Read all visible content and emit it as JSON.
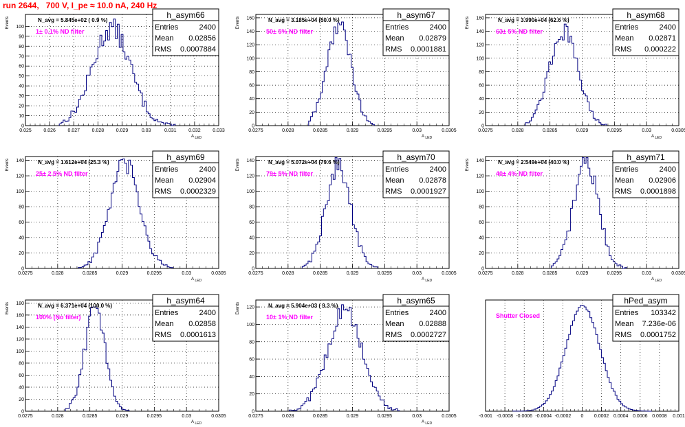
{
  "header": {
    "title": "run 2644,   700 V, I_pe ≈ 10.0 nA, 240 Hz"
  },
  "chart_data": [
    {
      "type": "histogram",
      "stat_title": "h_asym66",
      "navg": "N_avg = 5.845e+02 ( 0.9 %)",
      "annotation": "1± 0.1% ND filter",
      "ylabel": "Events",
      "xlabel": "A_LED",
      "xlim": [
        0.025,
        0.033
      ],
      "ylim": [
        0,
        112
      ],
      "xticks": [
        0.025,
        0.026,
        0.027,
        0.028,
        0.029,
        0.03,
        0.031,
        0.032,
        0.033
      ],
      "xtick_labels": [
        "0.025",
        "0.026",
        "0.027",
        "0.028",
        "0.029",
        "0.03",
        "0.031",
        "0.032",
        "0.033"
      ],
      "yticks": [
        0,
        10,
        20,
        30,
        40,
        50,
        60,
        70,
        80,
        90,
        100
      ],
      "ytick_labels": [
        "0",
        "10",
        "20",
        "30",
        "40",
        "50",
        "60",
        "70",
        "80",
        "90",
        "100"
      ],
      "stats": [
        {
          "label": "Entries",
          "value": "2400"
        },
        {
          "label": "Mean",
          "value": "0.02856"
        },
        {
          "label": "RMS",
          "value": "0.0007884"
        }
      ],
      "hist": {
        "mean": 0.02856,
        "sigma": 0.00079,
        "peak": 98,
        "bin_width": 8e-05,
        "range": [
          0.0264,
          0.0312
        ]
      }
    },
    {
      "type": "histogram",
      "stat_title": "h_asym67",
      "navg": "N_avg = 3.185e+04 (50.0 %)",
      "annotation": "50± 5% ND filter",
      "ylabel": "Events",
      "xlabel": "A_LED",
      "xlim": [
        0.0275,
        0.0305
      ],
      "ylim": [
        0,
        165
      ],
      "xticks": [
        0.0275,
        0.028,
        0.0285,
        0.029,
        0.0295,
        0.03,
        0.0305
      ],
      "xtick_labels": [
        "0.0275",
        "0.028",
        "0.0285",
        "0.029",
        "0.0295",
        "0.03",
        "0.0305"
      ],
      "yticks": [
        0,
        20,
        40,
        60,
        80,
        100,
        120,
        140,
        160
      ],
      "ytick_labels": [
        "0",
        "20",
        "40",
        "60",
        "80",
        "100",
        "120",
        "140",
        "160"
      ],
      "stats": [
        {
          "label": "Entries",
          "value": "2400"
        },
        {
          "label": "Mean",
          "value": "0.02879"
        },
        {
          "label": "RMS",
          "value": "0.0001881"
        }
      ],
      "hist": {
        "mean": 0.02879,
        "sigma": 0.000188,
        "peak": 150,
        "bin_width": 3e-05,
        "range": [
          0.02832,
          0.02932
        ]
      }
    },
    {
      "type": "histogram",
      "stat_title": "h_asym68",
      "navg": "N_avg = 3.990e+04 (62.6 %)",
      "annotation": "63± 5% ND filter",
      "ylabel": "Events",
      "xlabel": "A_LED",
      "xlim": [
        0.0275,
        0.0305
      ],
      "ylim": [
        0,
        165
      ],
      "xticks": [
        0.0275,
        0.028,
        0.0285,
        0.029,
        0.0295,
        0.03,
        0.0305
      ],
      "xtick_labels": [
        "0.0275",
        "0.028",
        "0.0285",
        "0.029",
        "0.0295",
        "0.03",
        "0.0305"
      ],
      "yticks": [
        0,
        20,
        40,
        60,
        80,
        100,
        120,
        140,
        160
      ],
      "ytick_labels": [
        "0",
        "20",
        "40",
        "60",
        "80",
        "100",
        "120",
        "140",
        "160"
      ],
      "stats": [
        {
          "label": "Entries",
          "value": "2400"
        },
        {
          "label": "Mean",
          "value": "0.02871"
        },
        {
          "label": "RMS",
          "value": "0.000222"
        }
      ],
      "hist": {
        "mean": 0.02871,
        "sigma": 0.000222,
        "peak": 140,
        "bin_width": 3e-05,
        "range": [
          0.02812,
          0.02935
        ]
      }
    },
    {
      "type": "histogram",
      "stat_title": "h_asym69",
      "navg": "N_avg = 1.612e+04 (25.3 %)",
      "annotation": "25± 2.5% ND filter",
      "ylabel": "Events",
      "xlabel": "A_LED",
      "xlim": [
        0.0275,
        0.0305
      ],
      "ylim": [
        0,
        145
      ],
      "xticks": [
        0.0275,
        0.028,
        0.0285,
        0.029,
        0.0295,
        0.03,
        0.0305
      ],
      "xtick_labels": [
        "0.0275",
        "0.028",
        "0.0285",
        "0.029",
        "0.0295",
        "0.03",
        "0.0305"
      ],
      "yticks": [
        0,
        20,
        40,
        60,
        80,
        100,
        120,
        140
      ],
      "ytick_labels": [
        "0",
        "20",
        "40",
        "60",
        "80",
        "100",
        "120",
        "140"
      ],
      "stats": [
        {
          "label": "Entries",
          "value": "2400"
        },
        {
          "label": "Mean",
          "value": "0.02904"
        },
        {
          "label": "RMS",
          "value": "0.0002329"
        }
      ],
      "hist": {
        "mean": 0.02904,
        "sigma": 0.000233,
        "peak": 135,
        "bin_width": 3e-05,
        "range": [
          0.02832,
          0.02976
        ]
      }
    },
    {
      "type": "histogram",
      "stat_title": "h_asym70",
      "navg": "N_avg = 5.072e+04 (79.6 %)",
      "annotation": "79± 5% ND filter",
      "ylabel": "Events",
      "xlabel": "A_LED",
      "xlim": [
        0.0275,
        0.0305
      ],
      "ylim": [
        0,
        145
      ],
      "xticks": [
        0.0275,
        0.028,
        0.0285,
        0.029,
        0.0295,
        0.03,
        0.0305
      ],
      "xtick_labels": [
        "0.0275",
        "0.028",
        "0.0285",
        "0.029",
        "0.0295",
        "0.03",
        "0.0305"
      ],
      "yticks": [
        0,
        20,
        40,
        60,
        80,
        100,
        120,
        140
      ],
      "ytick_labels": [
        "0",
        "20",
        "40",
        "60",
        "80",
        "100",
        "120",
        "140"
      ],
      "stats": [
        {
          "label": "Entries",
          "value": "2400"
        },
        {
          "label": "Mean",
          "value": "0.02878"
        },
        {
          "label": "RMS",
          "value": "0.0001927"
        }
      ],
      "hist": {
        "mean": 0.02878,
        "sigma": 0.000193,
        "peak": 135,
        "bin_width": 3e-05,
        "range": [
          0.02822,
          0.02938
        ]
      }
    },
    {
      "type": "histogram",
      "stat_title": "h_asym71",
      "navg": "N_avg = 2.549e+04 (40.0 %)",
      "annotation": "40± 4% ND filter",
      "ylabel": "Events",
      "xlabel": "A_LED",
      "xlim": [
        0.0275,
        0.0305
      ],
      "ylim": [
        0,
        145
      ],
      "xticks": [
        0.0275,
        0.028,
        0.0285,
        0.029,
        0.0295,
        0.03,
        0.0305
      ],
      "xtick_labels": [
        "0.0275",
        "0.028",
        "0.0285",
        "0.029",
        "0.0295",
        "0.03",
        "0.0305"
      ],
      "yticks": [
        0,
        20,
        40,
        60,
        80,
        100,
        120,
        140
      ],
      "ytick_labels": [
        "0",
        "20",
        "40",
        "60",
        "80",
        "100",
        "120",
        "140"
      ],
      "stats": [
        {
          "label": "Entries",
          "value": "2400"
        },
        {
          "label": "Mean",
          "value": "0.02906"
        },
        {
          "label": "RMS",
          "value": "0.0001898"
        }
      ],
      "hist": {
        "mean": 0.02906,
        "sigma": 0.00019,
        "peak": 140,
        "bin_width": 3e-05,
        "range": [
          0.02852,
          0.02968
        ]
      }
    },
    {
      "type": "histogram",
      "stat_title": "h_asym64",
      "navg": "N_avg = 6.371e+04 (100.0 %)",
      "annotation": "100% (No filter)",
      "ylabel": "Events",
      "xlabel": "A_LED",
      "xlim": [
        0.0275,
        0.0305
      ],
      "ylim": [
        0,
        185
      ],
      "xticks": [
        0.0275,
        0.028,
        0.0285,
        0.029,
        0.0295,
        0.03,
        0.0305
      ],
      "xtick_labels": [
        "0.0275",
        "0.028",
        "0.0285",
        "0.029",
        "0.0295",
        "0.03",
        "0.0305"
      ],
      "yticks": [
        0,
        20,
        40,
        60,
        80,
        100,
        120,
        140,
        160,
        180
      ],
      "ytick_labels": [
        "0",
        "20",
        "40",
        "60",
        "80",
        "100",
        "120",
        "140",
        "160",
        "180"
      ],
      "stats": [
        {
          "label": "Entries",
          "value": "2400"
        },
        {
          "label": "Mean",
          "value": "0.02858"
        },
        {
          "label": "RMS",
          "value": "0.0001613"
        }
      ],
      "hist": {
        "mean": 0.02858,
        "sigma": 0.000161,
        "peak": 170,
        "bin_width": 3e-05,
        "range": [
          0.02812,
          0.02908
        ]
      }
    },
    {
      "type": "histogram",
      "stat_title": "h_asym65",
      "navg": "N_avg = 5.904e+03 ( 9.3 %)",
      "annotation": "10± 1% ND filter",
      "ylabel": "Events",
      "xlabel": "A_LED",
      "xlim": [
        0.0275,
        0.0305
      ],
      "ylim": [
        0,
        128
      ],
      "xticks": [
        0.0275,
        0.028,
        0.0285,
        0.029,
        0.0295,
        0.03,
        0.0305
      ],
      "xtick_labels": [
        "0.0275",
        "0.028",
        "0.0285",
        "0.029",
        "0.0295",
        "0.03",
        "0.0305"
      ],
      "yticks": [
        0,
        20,
        40,
        60,
        80,
        100,
        120
      ],
      "ytick_labels": [
        "0",
        "20",
        "40",
        "60",
        "80",
        "100",
        "120"
      ],
      "stats": [
        {
          "label": "Entries",
          "value": "2400"
        },
        {
          "label": "Mean",
          "value": "0.02888"
        },
        {
          "label": "RMS",
          "value": "0.0002727"
        }
      ],
      "hist": {
        "mean": 0.02888,
        "sigma": 0.000273,
        "peak": 115,
        "bin_width": 3e-05,
        "range": [
          0.02802,
          0.02972
        ]
      }
    },
    {
      "type": "histogram",
      "stat_title": "hPed_asym",
      "navg": "",
      "annotation": "Shutter Closed",
      "ylabel": "",
      "xlabel": "",
      "xlim": [
        -0.001,
        0.001
      ],
      "ylim": [
        0,
        5200
      ],
      "xticks": [
        -0.001,
        -0.0008,
        -0.0006,
        -0.0004,
        -0.0002,
        0,
        0.0002,
        0.0004,
        0.0006,
        0.0008,
        0.001
      ],
      "xtick_labels": [
        "-0.001",
        "-0.0008",
        "-0.0006",
        "-0.0004",
        "-0.0002",
        "0",
        "0.0002",
        "0.0004",
        "0.0006",
        "0.0008",
        "0.001"
      ],
      "yticks": [],
      "ytick_labels": [],
      "stats": [
        {
          "label": "Entries",
          "value": "103342"
        },
        {
          "label": "Mean",
          "value": "7.236e-06"
        },
        {
          "label": "RMS",
          "value": "0.0001752"
        }
      ],
      "hist": {
        "mean": 7e-06,
        "sigma": 0.000175,
        "peak": 4950,
        "bin_width": 2e-05,
        "range": [
          -0.00072,
          0.00072
        ]
      }
    }
  ]
}
